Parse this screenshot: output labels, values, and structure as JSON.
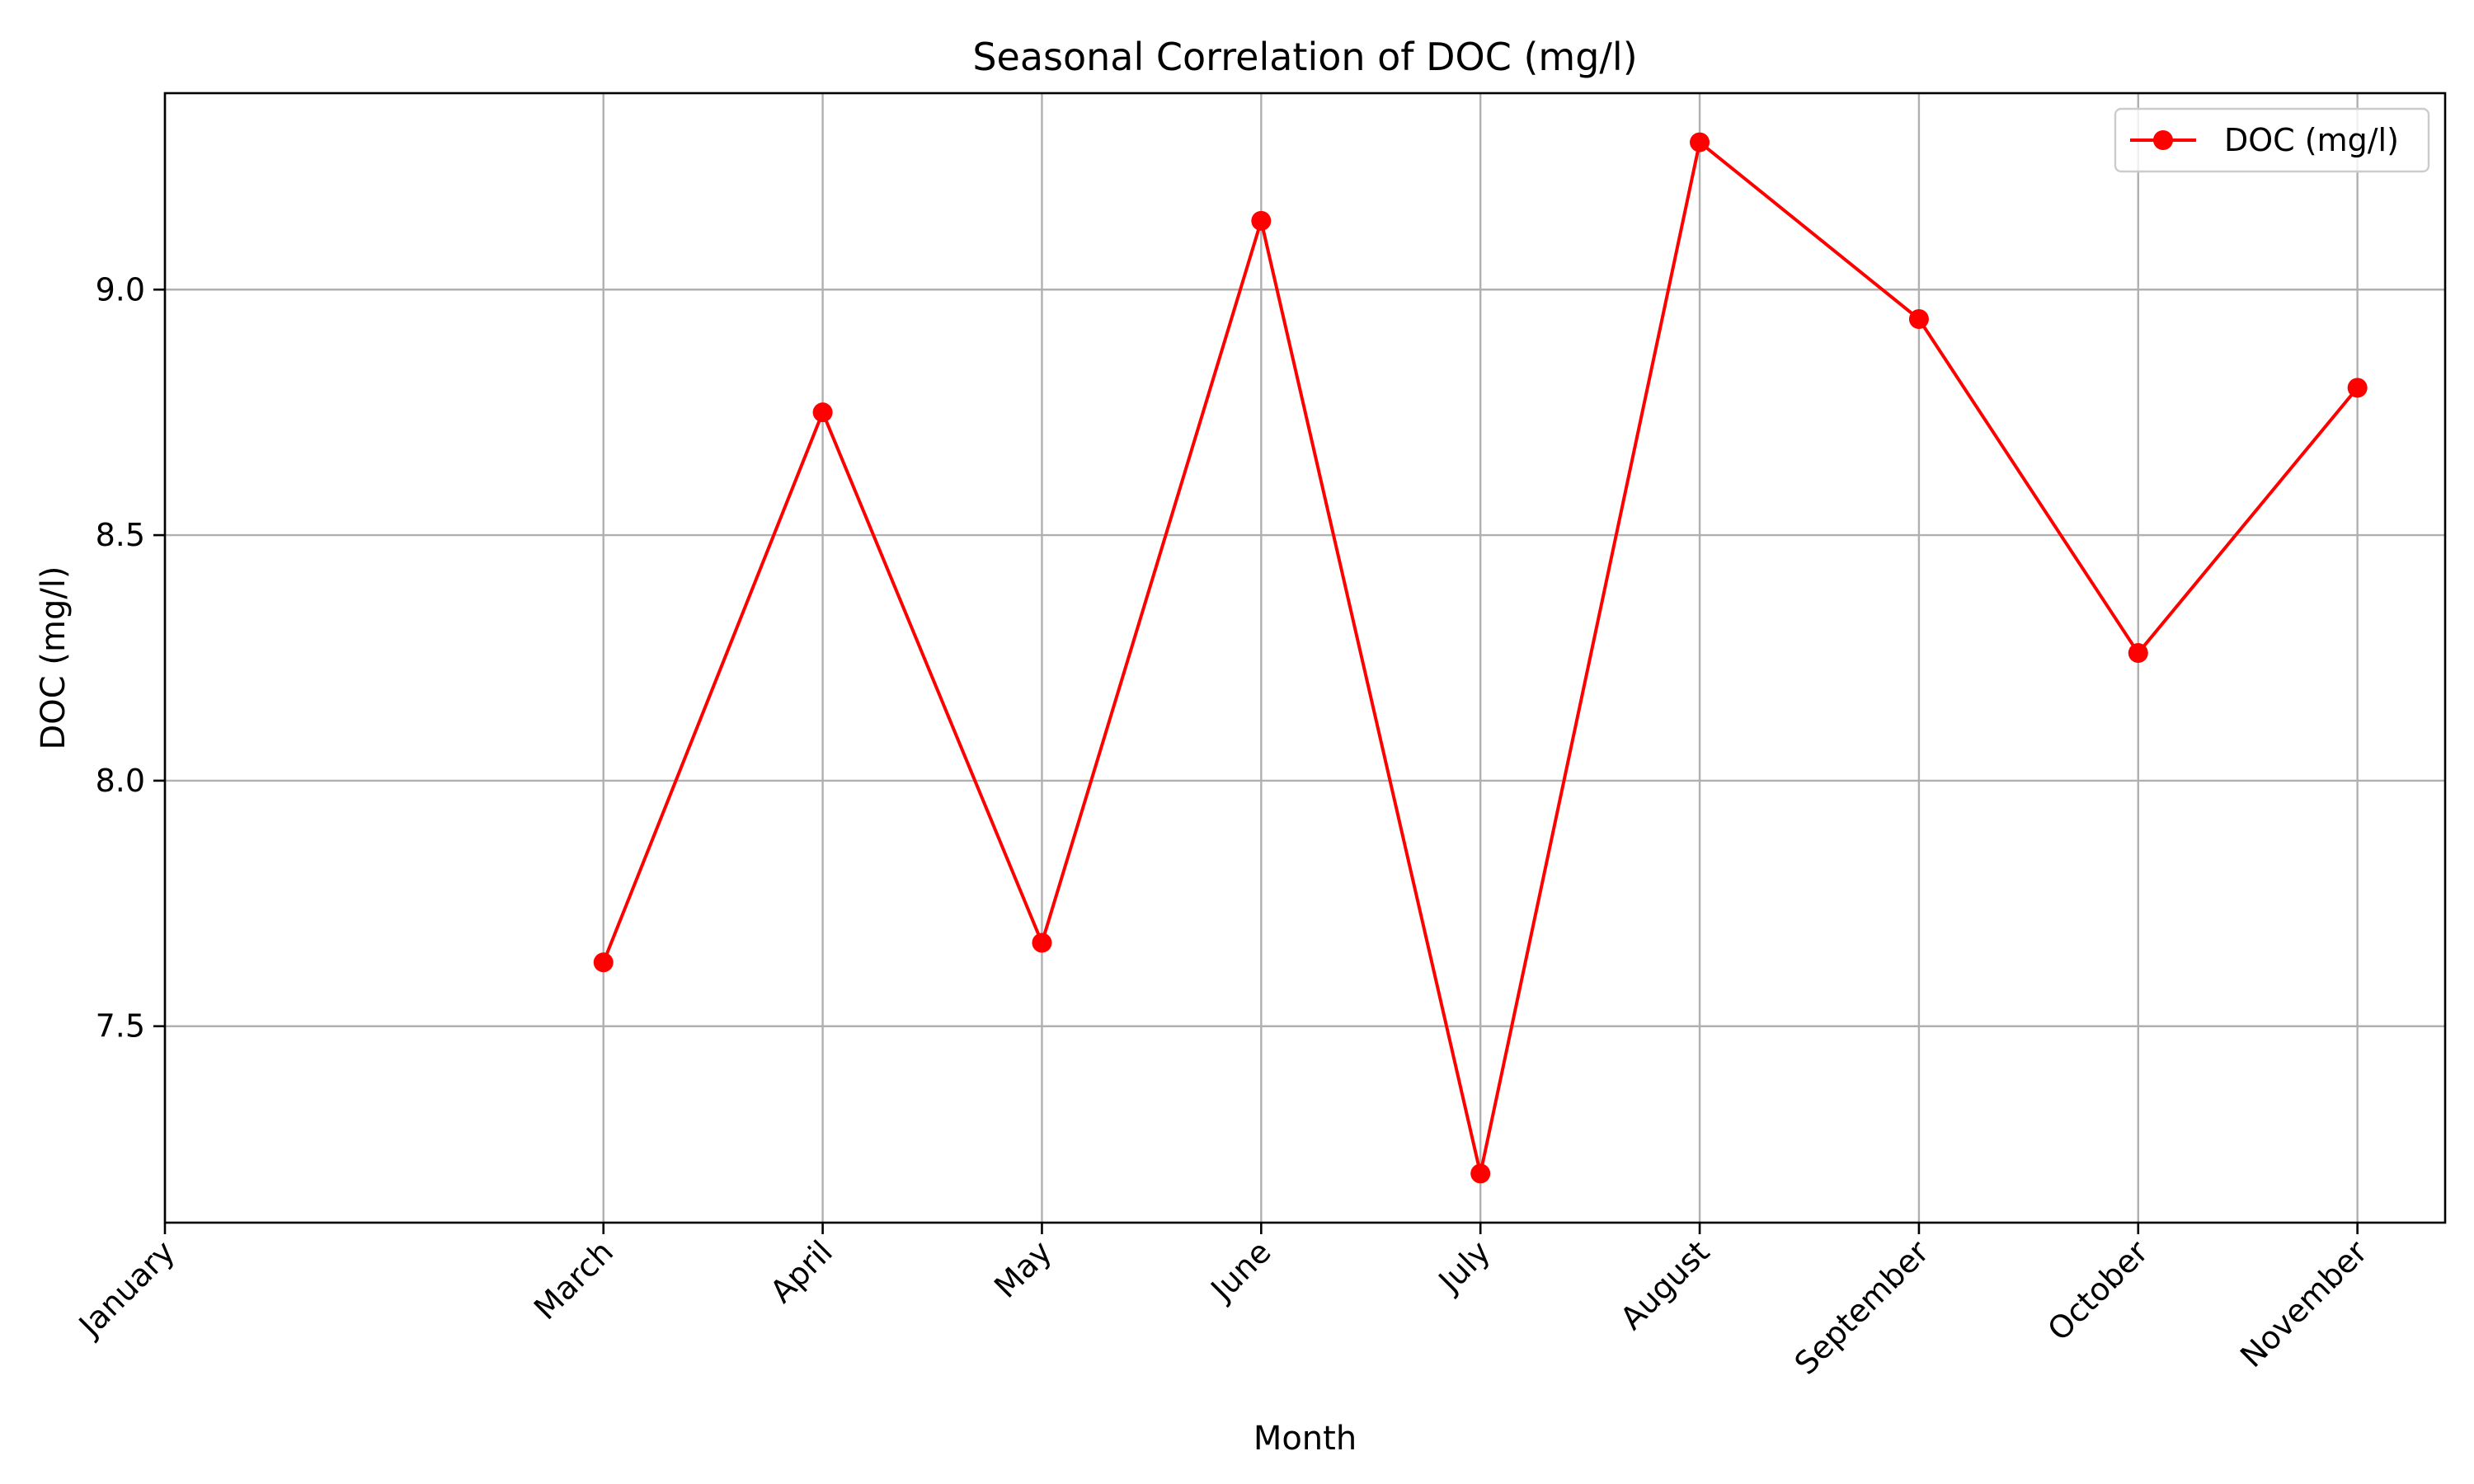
{
  "chart_data": {
    "type": "line",
    "title": "Seasonal Correlation of DOC (mg/l)",
    "xlabel": "Month",
    "ylabel": "DOC (mg/l)",
    "x_tick_labels": [
      "January",
      "March",
      "April",
      "May",
      "June",
      "July",
      "August",
      "September",
      "October",
      "November"
    ],
    "x_tick_positions": [
      1,
      3,
      4,
      5,
      6,
      7,
      8,
      9,
      10,
      11
    ],
    "xlim": [
      1,
      11.4
    ],
    "ylim": [
      7.1,
      9.4
    ],
    "y_ticks": [
      7.5,
      8.0,
      8.5,
      9.0
    ],
    "y_tick_labels": [
      "7.5",
      "8.0",
      "8.5",
      "9.0"
    ],
    "grid": true,
    "legend_position": "top-right",
    "series": [
      {
        "name": "DOC (mg/l)",
        "color": "#ff0000",
        "marker": "circle",
        "x": [
          3,
          4,
          5,
          6,
          7,
          8,
          9,
          10,
          11
        ],
        "categories": [
          "March",
          "April",
          "May",
          "June",
          "July",
          "August",
          "September",
          "October",
          "November"
        ],
        "values": [
          7.63,
          8.75,
          7.67,
          9.14,
          7.2,
          9.3,
          8.94,
          8.26,
          8.8
        ]
      }
    ]
  }
}
